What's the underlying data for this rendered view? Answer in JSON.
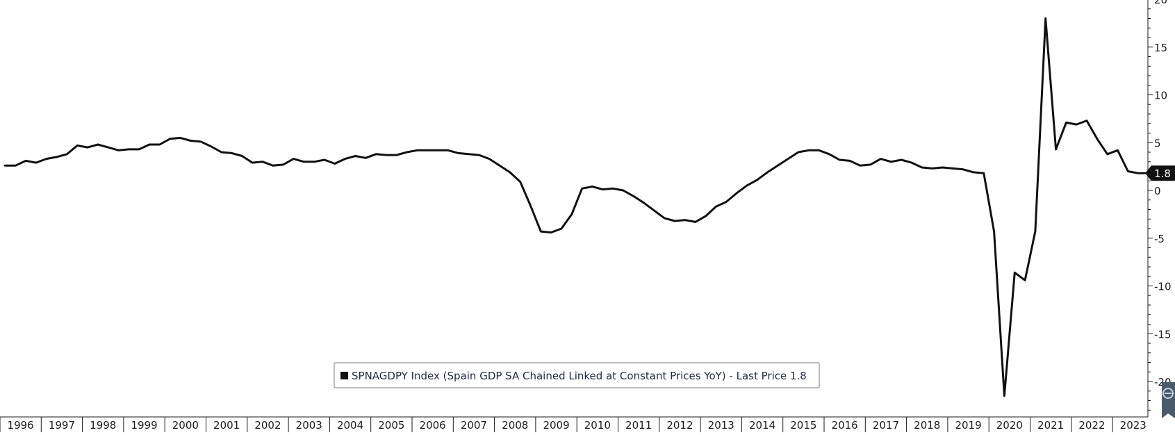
{
  "chart_data": {
    "type": "line",
    "title": "",
    "xlabel": "",
    "ylabel": "",
    "ylim": [
      -23.5,
      20
    ],
    "y_ticks": [
      20,
      15,
      10,
      5,
      0,
      -5,
      -10,
      -15,
      -20
    ],
    "y_tick_labels": [
      "20",
      "15",
      "10",
      "5",
      "0",
      "-5",
      "-10",
      "-15",
      "-20"
    ],
    "x_range": [
      1996.0,
      2024.25
    ],
    "x_tick_labels": [
      "1996",
      "1997",
      "1998",
      "1999",
      "2000",
      "2001",
      "2002",
      "2003",
      "2004",
      "2005",
      "2006",
      "2007",
      "2008",
      "2009",
      "2010",
      "2011",
      "2012",
      "2013",
      "2014",
      "2015",
      "2016",
      "2017",
      "2018",
      "2019",
      "2020",
      "2021",
      "2022",
      "2023"
    ],
    "grid": false,
    "legend": {
      "text": "SPNAGDPY Index (Spain GDP SA Chained Linked at Constant Prices YoY) - Last Price 1.8",
      "placement": "bottom-center"
    },
    "last_price_label": "1.8",
    "series": [
      {
        "name": "SPNAGDPY Index (Spain GDP SA Chained Linked at Constant Prices YoY)",
        "color": "#111111",
        "x": [
          1996.125,
          1996.375,
          1996.625,
          1996.875,
          1997.125,
          1997.375,
          1997.625,
          1997.875,
          1998.125,
          1998.375,
          1998.625,
          1998.875,
          1999.125,
          1999.375,
          1999.625,
          1999.875,
          2000.125,
          2000.375,
          2000.625,
          2000.875,
          2001.125,
          2001.375,
          2001.625,
          2001.875,
          2002.125,
          2002.375,
          2002.625,
          2002.875,
          2003.125,
          2003.375,
          2003.625,
          2003.875,
          2004.125,
          2004.375,
          2004.625,
          2004.875,
          2005.125,
          2005.375,
          2005.625,
          2005.875,
          2006.125,
          2006.375,
          2006.625,
          2006.875,
          2007.125,
          2007.375,
          2007.625,
          2007.875,
          2008.125,
          2008.375,
          2008.625,
          2008.875,
          2009.125,
          2009.375,
          2009.625,
          2009.875,
          2010.125,
          2010.375,
          2010.625,
          2010.875,
          2011.125,
          2011.375,
          2011.625,
          2011.875,
          2012.125,
          2012.375,
          2012.625,
          2012.875,
          2013.125,
          2013.375,
          2013.625,
          2013.875,
          2014.125,
          2014.375,
          2014.625,
          2014.875,
          2015.125,
          2015.375,
          2015.625,
          2015.875,
          2016.125,
          2016.375,
          2016.625,
          2016.875,
          2017.125,
          2017.375,
          2017.625,
          2017.875,
          2018.125,
          2018.375,
          2018.625,
          2018.875,
          2019.125,
          2019.375,
          2019.625,
          2019.875,
          2020.125,
          2020.375,
          2020.625,
          2020.875,
          2021.125,
          2021.375,
          2021.625,
          2021.875,
          2022.125,
          2022.375,
          2022.625,
          2022.875,
          2023.125,
          2023.375,
          2023.625,
          2023.875
        ],
        "values": [
          2.6,
          2.6,
          3.1,
          2.9,
          3.3,
          3.5,
          3.8,
          4.7,
          4.5,
          4.8,
          4.5,
          4.2,
          4.3,
          4.3,
          4.8,
          4.8,
          5.4,
          5.5,
          5.2,
          5.1,
          4.6,
          4.0,
          3.9,
          3.6,
          2.9,
          3.0,
          2.6,
          2.7,
          3.3,
          3.0,
          3.0,
          3.2,
          2.8,
          3.3,
          3.6,
          3.4,
          3.8,
          3.7,
          3.7,
          4.0,
          4.2,
          4.2,
          4.2,
          4.2,
          3.9,
          3.8,
          3.7,
          3.3,
          2.6,
          1.9,
          0.9,
          -1.6,
          -4.3,
          -4.4,
          -4.0,
          -2.5,
          0.2,
          0.4,
          0.1,
          0.2,
          0.0,
          -0.6,
          -1.3,
          -2.1,
          -2.9,
          -3.2,
          -3.1,
          -3.3,
          -2.7,
          -1.7,
          -1.2,
          -0.3,
          0.5,
          1.1,
          1.9,
          2.6,
          3.3,
          4.0,
          4.2,
          4.2,
          3.8,
          3.2,
          3.1,
          2.6,
          2.7,
          3.3,
          3.0,
          3.2,
          2.9,
          2.4,
          2.3,
          2.4,
          2.3,
          2.2,
          1.9,
          1.8,
          -4.3,
          -21.5,
          -8.6,
          -9.4,
          -4.3,
          18.0,
          4.3,
          7.1,
          6.9,
          7.3,
          5.4,
          3.8,
          4.2,
          2.0,
          1.8,
          1.8
        ]
      }
    ]
  }
}
